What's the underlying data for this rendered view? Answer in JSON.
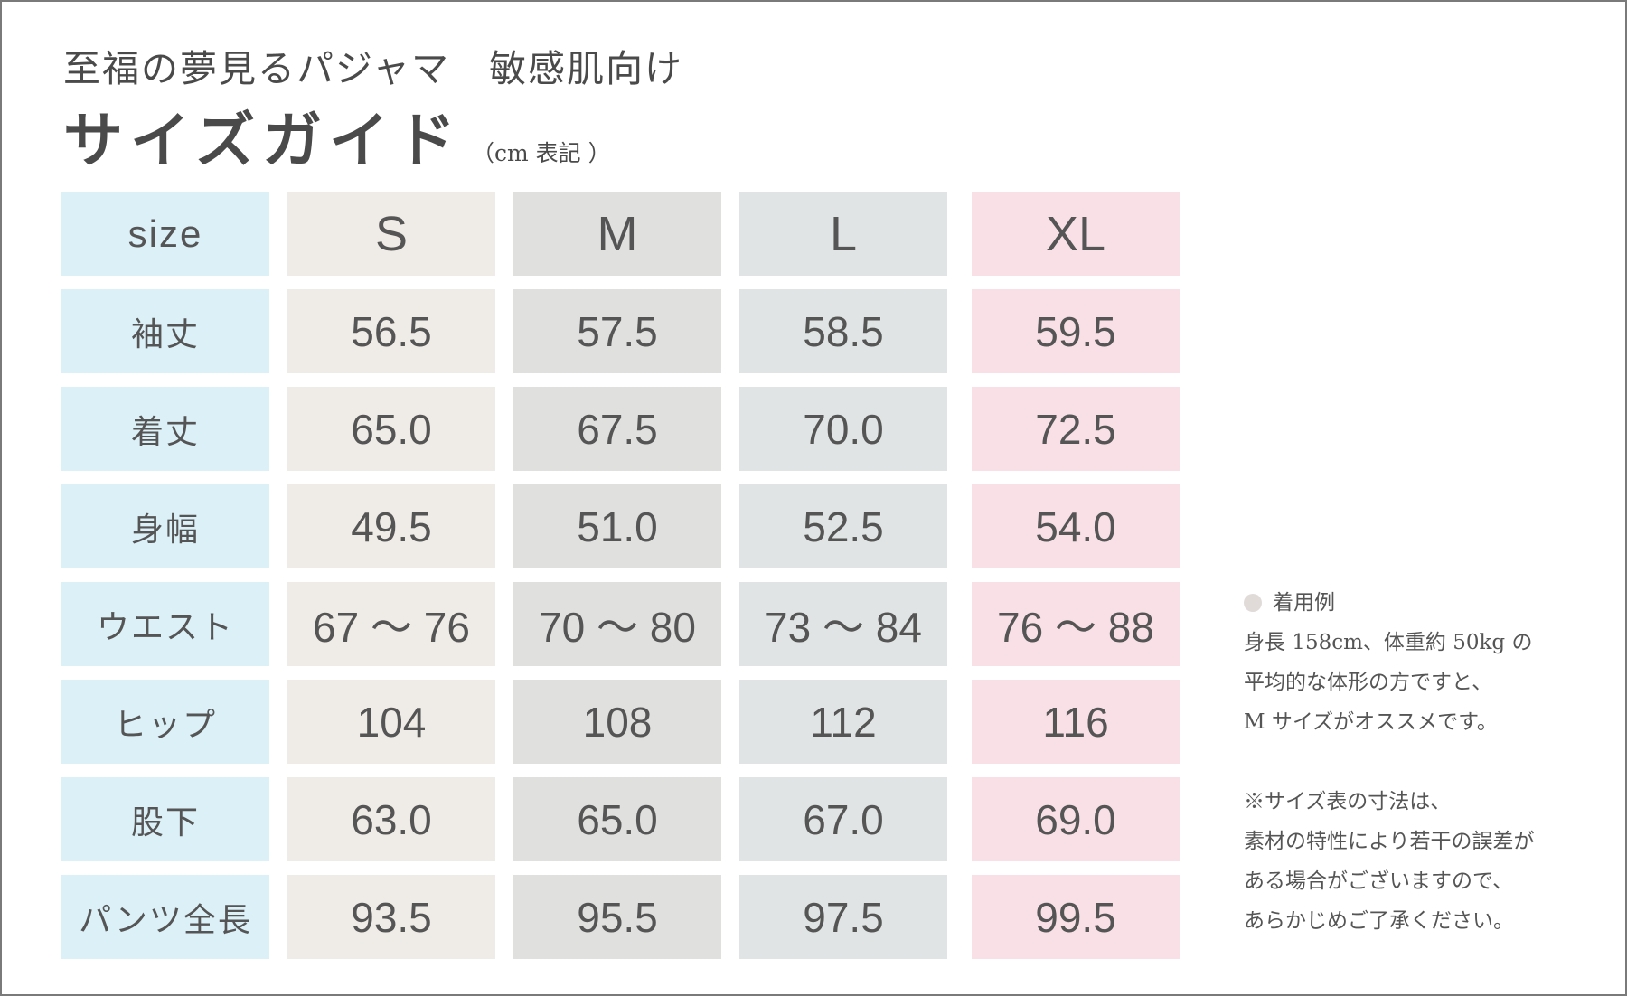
{
  "header": {
    "subtitle": "至福の夢見るパジャマ　敏感肌向け",
    "title": "サイズガイド",
    "unit_note": "（cm 表記 ）"
  },
  "colors": {
    "label_column": "#dcf0f7",
    "s_column": "#efebe6",
    "m_column": "#e0e0df",
    "l_column": "#e0e4e4",
    "xl_column": "#f8e0e6",
    "text": "#555555"
  },
  "table": {
    "columns": [
      "size",
      "S",
      "M",
      "L",
      "XL"
    ],
    "rows": [
      {
        "label": "袖丈",
        "values": [
          "56.5",
          "57.5",
          "58.5",
          "59.5"
        ]
      },
      {
        "label": "着丈",
        "values": [
          "65.0",
          "67.5",
          "70.0",
          "72.5"
        ]
      },
      {
        "label": "身幅",
        "values": [
          "49.5",
          "51.0",
          "52.5",
          "54.0"
        ]
      },
      {
        "label": "ウエスト",
        "values": [
          "67 ～ 76",
          "70 ～ 80",
          "73 ～ 84",
          "76 ～ 88"
        ]
      },
      {
        "label": "ヒップ",
        "values": [
          "104",
          "108",
          "112",
          "116"
        ]
      },
      {
        "label": "股下",
        "values": [
          "63.0",
          "65.0",
          "67.0",
          "69.0"
        ]
      },
      {
        "label": "パンツ全長",
        "values": [
          "93.5",
          "95.5",
          "97.5",
          "99.5"
        ]
      }
    ]
  },
  "notes": {
    "example_heading": "着用例",
    "example_lines": [
      "身長 158cm、体重約 50kg の",
      "平均的な体形の方ですと、",
      "M サイズがオススメです。"
    ],
    "disclaimer_lines": [
      "※サイズ表の寸法は、",
      "素材の特性により若干の誤差が",
      "ある場合がございますので、",
      "あらかじめご了承ください。"
    ]
  }
}
